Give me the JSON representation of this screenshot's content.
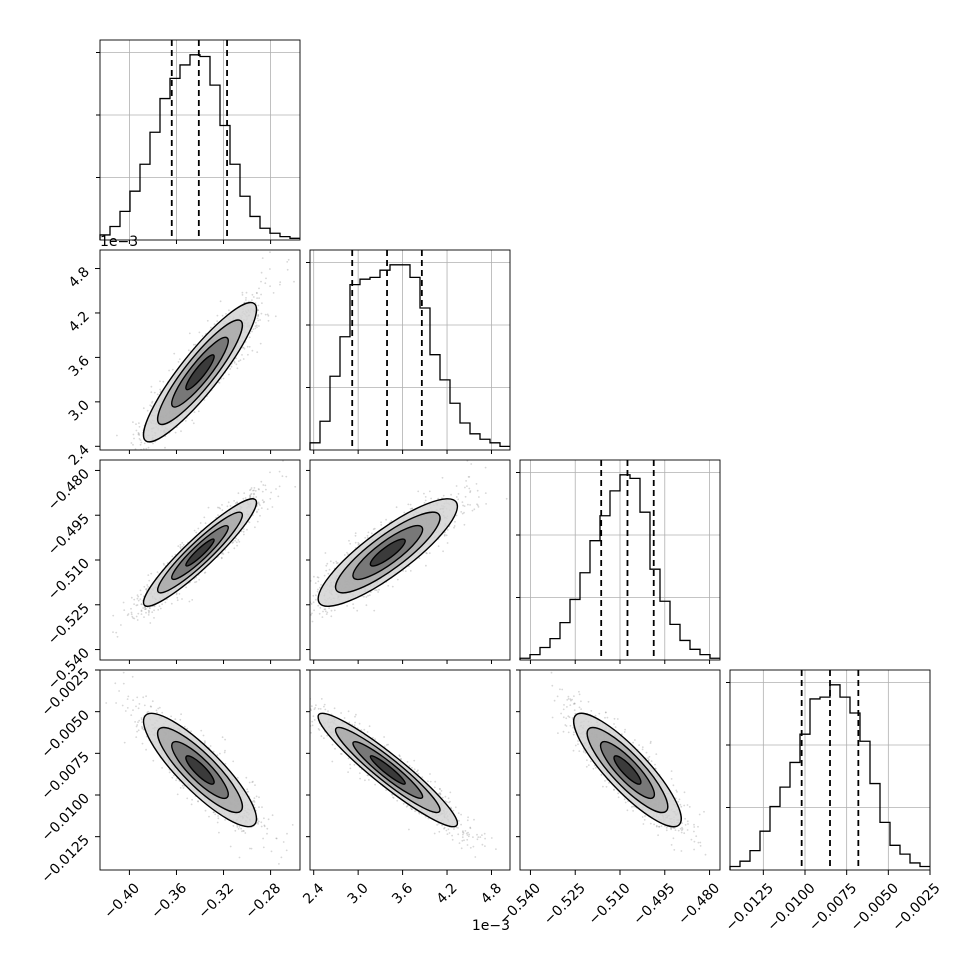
{
  "chart_data": {
    "type": "corner",
    "parameters": [
      {
        "index": 0,
        "range": [
          -0.425,
          -0.255
        ],
        "ticks": [
          -0.4,
          -0.36,
          -0.32,
          -0.28
        ],
        "tick_labels": [
          "−0.40",
          "−0.36",
          "−0.32",
          "−0.28"
        ],
        "offset_text": "",
        "median": -0.341,
        "q16": -0.364,
        "q84": -0.317
      },
      {
        "index": 1,
        "range": [
          0.00235,
          0.00505
        ],
        "ticks": [
          0.0024,
          0.003,
          0.0036,
          0.0042,
          0.0048
        ],
        "tick_labels": [
          "2.4",
          "3.0",
          "3.6",
          "4.2",
          "4.8"
        ],
        "offset_text": "1e−3",
        "median": 0.00339,
        "q16": 0.00292,
        "q84": 0.00386
      },
      {
        "index": 2,
        "range": [
          -0.5435,
          -0.4765
        ],
        "ticks": [
          -0.54,
          -0.525,
          -0.51,
          -0.495,
          -0.48
        ],
        "tick_labels": [
          "−0.540",
          "−0.525",
          "−0.510",
          "−0.495",
          "−0.480"
        ],
        "offset_text": "",
        "median": -0.5075,
        "q16": -0.5163,
        "q84": -0.4987
      },
      {
        "index": 3,
        "range": [
          -0.0145,
          -0.0025
        ],
        "ticks": [
          -0.0125,
          -0.01,
          -0.0075,
          -0.005,
          -0.0025
        ],
        "tick_labels": [
          "−0.0125",
          "−0.0100",
          "−0.0075",
          "−0.0050",
          "−0.0025"
        ],
        "offset_text": "",
        "median": -0.0085,
        "q16": -0.0102,
        "q84": -0.0068
      }
    ],
    "histograms": [
      {
        "index": 0,
        "bins": [
          -0.425,
          -0.4165,
          -0.408,
          -0.3995,
          -0.391,
          -0.3825,
          -0.374,
          -0.3655,
          -0.357,
          -0.3485,
          -0.34,
          -0.3315,
          -0.323,
          -0.3145,
          -0.306,
          -0.2975,
          -0.289,
          -0.2805,
          -0.272,
          -0.2635,
          -0.255
        ],
        "counts": [
          3,
          8,
          17,
          29,
          45,
          64,
          84,
          96,
          104,
          110,
          109,
          92,
          68,
          45,
          26,
          14,
          7,
          4,
          2,
          1
        ]
      },
      {
        "index": 1,
        "bins": [
          0.00235,
          0.002485,
          0.00262,
          0.002755,
          0.00289,
          0.003025,
          0.00316,
          0.003295,
          0.00343,
          0.003565,
          0.0037,
          0.003835,
          0.00397,
          0.004105,
          0.00424,
          0.004375,
          0.00451,
          0.004645,
          0.00478,
          0.004915,
          0.00505
        ],
        "counts": [
          4,
          16,
          41,
          63,
          92,
          95,
          96,
          100,
          103,
          103,
          96,
          79,
          53,
          39,
          26,
          15,
          9,
          6,
          4,
          2
        ]
      },
      {
        "index": 2,
        "bins": [
          -0.5435,
          -0.54015,
          -0.5368,
          -0.53345,
          -0.5301,
          -0.52675,
          -0.5234,
          -0.52005,
          -0.5167,
          -0.51335,
          -0.51,
          -0.50665,
          -0.5033,
          -0.49995,
          -0.4966,
          -0.49325,
          -0.4899,
          -0.48655,
          -0.4832,
          -0.47985,
          -0.4765
        ],
        "counts": [
          1,
          3,
          7,
          12,
          21,
          34,
          49,
          67,
          81,
          95,
          104,
          102,
          83,
          51,
          33,
          20,
          11,
          6,
          3,
          1
        ]
      },
      {
        "index": 3,
        "bins": [
          -0.0145,
          -0.0139,
          -0.0133,
          -0.0127,
          -0.0121,
          -0.0115,
          -0.0109,
          -0.0103,
          -0.0097,
          -0.0091,
          -0.0085,
          -0.0079,
          -0.0073,
          -0.0067,
          -0.0061,
          -0.0055,
          -0.0049,
          -0.0043,
          -0.0037,
          -0.0031,
          -0.0025
        ],
        "counts": [
          2,
          5,
          11,
          22,
          36,
          47,
          61,
          77,
          97,
          98,
          105,
          98,
          89,
          73,
          49,
          27,
          14,
          9,
          4,
          2
        ]
      }
    ],
    "pairs": [
      {
        "x": 0,
        "y": 1,
        "rho": 0.9,
        "mean": [
          -0.34,
          0.0034
        ],
        "sd": [
          0.024,
          0.00047
        ]
      },
      {
        "x": 0,
        "y": 2,
        "rho": 0.93,
        "mean": [
          -0.34,
          -0.5075
        ],
        "sd": [
          0.024,
          0.009
        ]
      },
      {
        "x": 1,
        "y": 2,
        "rho": 0.86,
        "mean": [
          0.0034,
          -0.5075
        ],
        "sd": [
          0.00047,
          0.009
        ]
      },
      {
        "x": 0,
        "y": 3,
        "rho": -0.86,
        "mean": [
          -0.34,
          -0.0085
        ],
        "sd": [
          0.024,
          0.0017
        ]
      },
      {
        "x": 1,
        "y": 3,
        "rho": -0.94,
        "mean": [
          0.0034,
          -0.0085
        ],
        "sd": [
          0.00047,
          0.0017
        ]
      },
      {
        "x": 2,
        "y": 3,
        "rho": -0.86,
        "mean": [
          -0.5075,
          -0.0085
        ],
        "sd": [
          0.009,
          0.0017
        ]
      }
    ],
    "contour_levels_sigma": [
      0.5,
      1.0,
      1.5,
      2.0
    ],
    "grid": true,
    "colors": {
      "line": "#000000",
      "scatter": "#8c8c8c",
      "grid": "#b0b0b0",
      "frame": "#000000"
    }
  }
}
